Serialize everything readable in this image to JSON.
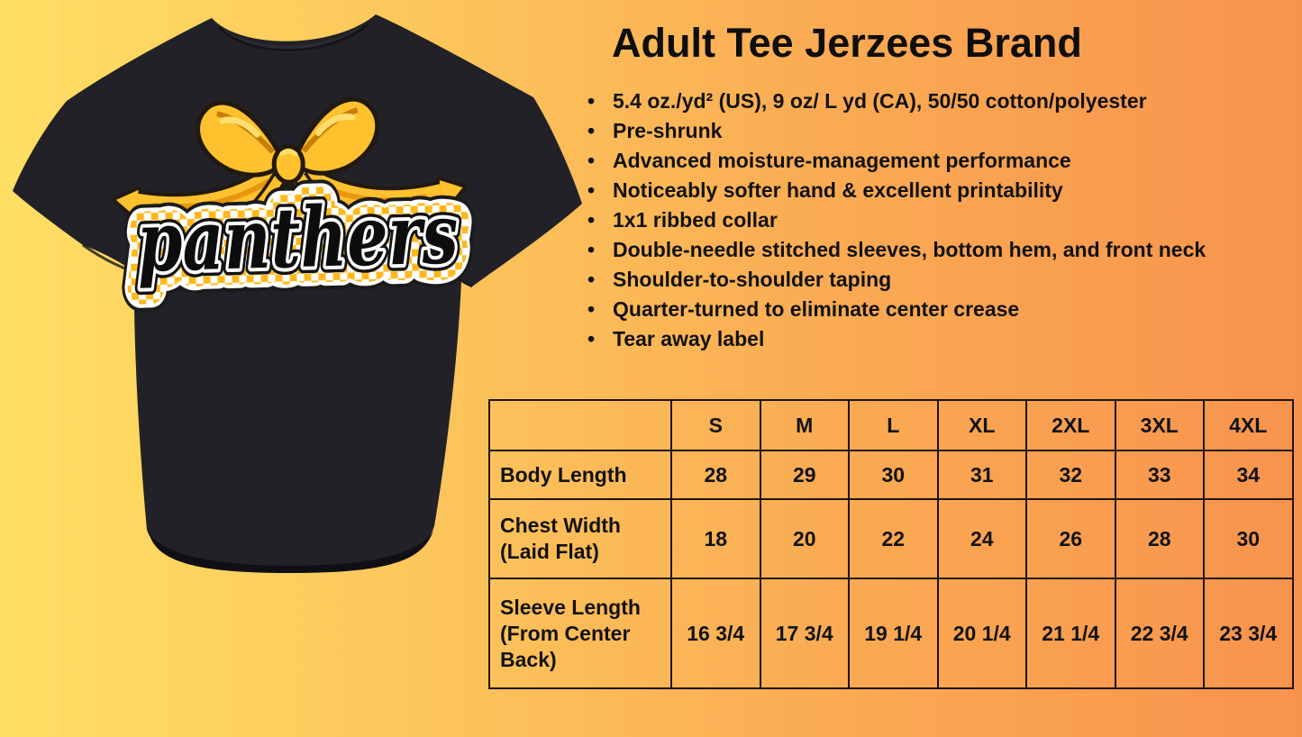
{
  "product": {
    "title": "Adult Tee Jerzees Brand",
    "features": [
      "5.4 oz./yd² (US), 9 oz/ L yd (CA), 50/50 cotton/polyester",
      "Pre-shrunk",
      "Advanced moisture-management performance",
      "Noticeably softer hand & excellent printability",
      "1x1 ribbed collar",
      "Double-needle stitched sleeves, bottom hem, and front neck",
      "Shoulder-to-shoulder taping",
      "Quarter-turned to eliminate center crease",
      "Tear away label"
    ]
  },
  "shirt": {
    "design_text": "panthers",
    "shirt_color": "#212127",
    "bow_color": "#FFC12E",
    "checker_color": "#FFB81C"
  },
  "size_chart": {
    "columns": [
      "",
      "S",
      "M",
      "L",
      "XL",
      "2XL",
      "3XL",
      "4XL"
    ],
    "rows": [
      {
        "label": "Body Length",
        "values": [
          "28",
          "29",
          "30",
          "31",
          "32",
          "33",
          "34"
        ]
      },
      {
        "label": "Chest Width (Laid Flat)",
        "values": [
          "18",
          "20",
          "22",
          "24",
          "26",
          "28",
          "30"
        ]
      },
      {
        "label": "Sleeve Length (From Center Back)",
        "values": [
          "16 3/4",
          "17 3/4",
          "19 1/4",
          "20 1/4",
          "21 1/4",
          "22 3/4",
          "23 3/4"
        ]
      }
    ]
  },
  "colors": {
    "background_left": "#FFDF64",
    "background_right": "#F8934D",
    "table_border": "#20130A",
    "text": "#121212"
  }
}
